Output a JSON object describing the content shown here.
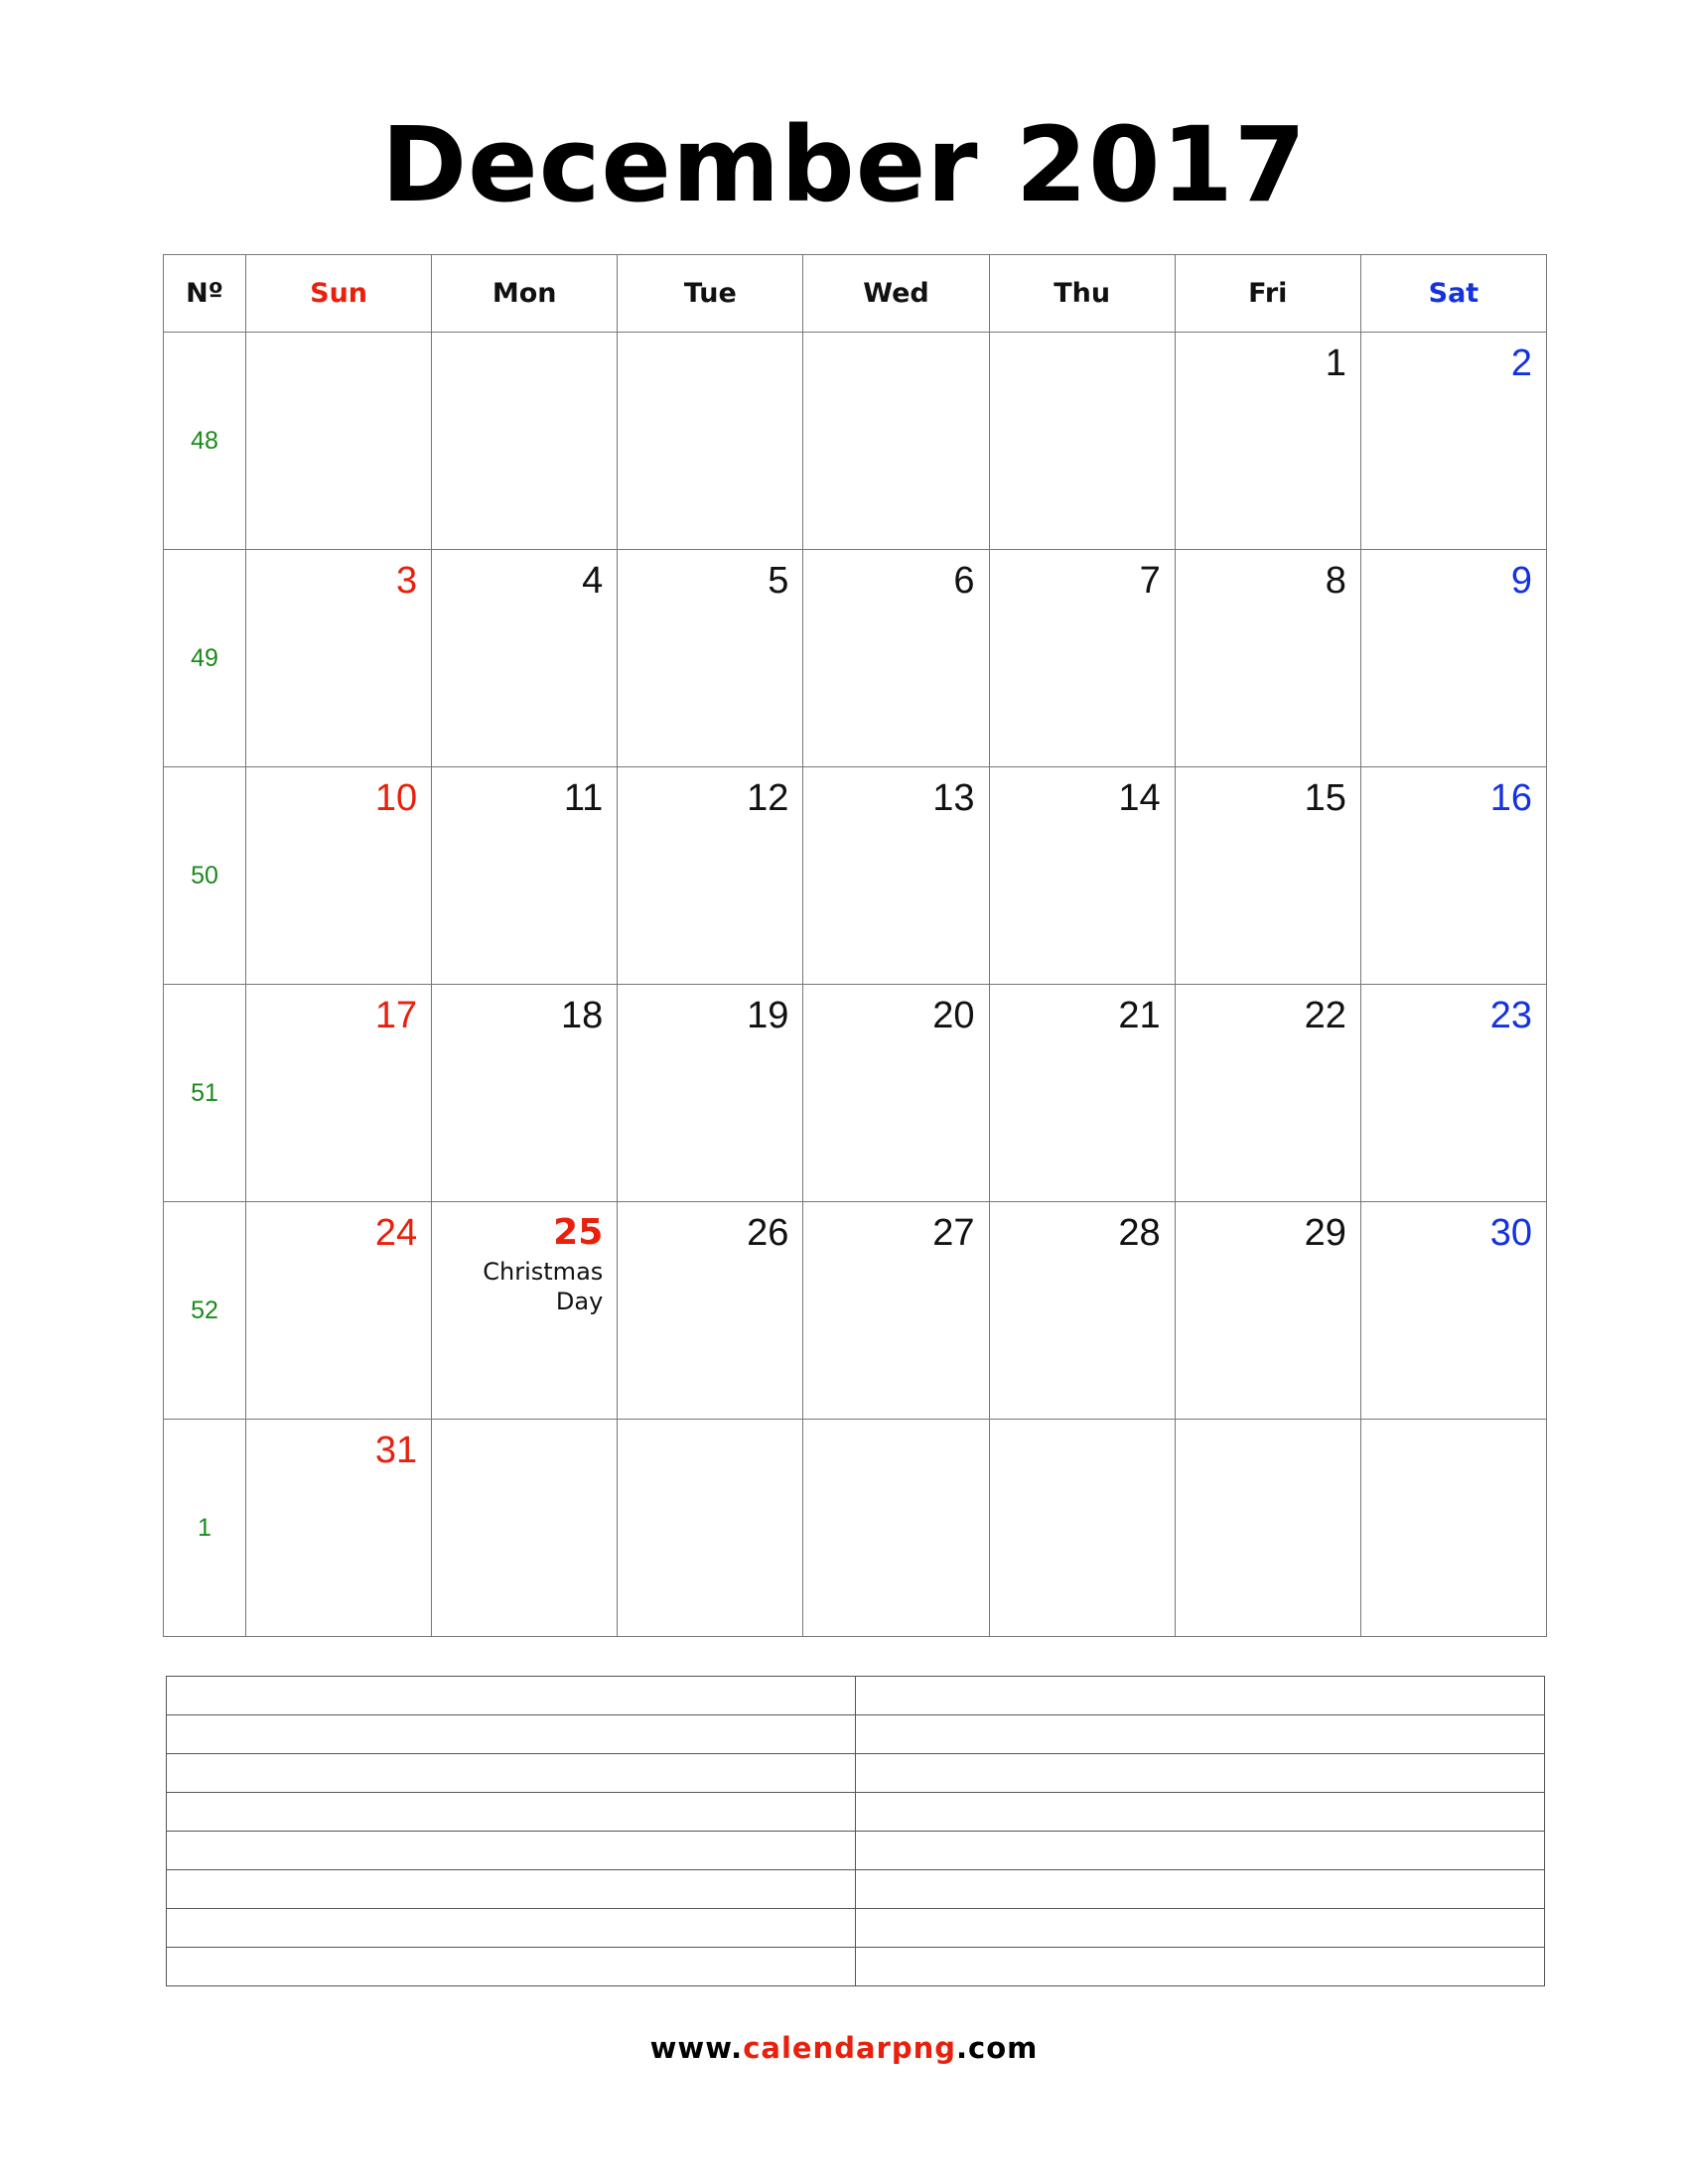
{
  "title": "December 2017",
  "header": [
    "Nº",
    "Sun",
    "Mon",
    "Tue",
    "Wed",
    "Thu",
    "Fri",
    "Sat"
  ],
  "weeks": [
    {
      "number": "48",
      "days": [
        null,
        null,
        null,
        null,
        null,
        "1",
        "2"
      ]
    },
    {
      "number": "49",
      "days": [
        "3",
        "4",
        "5",
        "6",
        "7",
        "8",
        "9"
      ]
    },
    {
      "number": "50",
      "days": [
        "10",
        "11",
        "12",
        "13",
        "14",
        "15",
        "16"
      ]
    },
    {
      "number": "51",
      "days": [
        "17",
        "18",
        "19",
        "20",
        "21",
        "22",
        "23"
      ]
    },
    {
      "number": "52",
      "days": [
        "24",
        {
          "date": "25",
          "holiday": "Christmas Day"
        },
        "26",
        "27",
        "28",
        "29",
        "30"
      ]
    },
    {
      "number": "1",
      "days": [
        "31",
        null,
        null,
        null,
        null,
        null,
        null
      ]
    }
  ],
  "footer": {
    "prefix": "www.",
    "site": "calendarpng",
    "suffix": ".com"
  }
}
